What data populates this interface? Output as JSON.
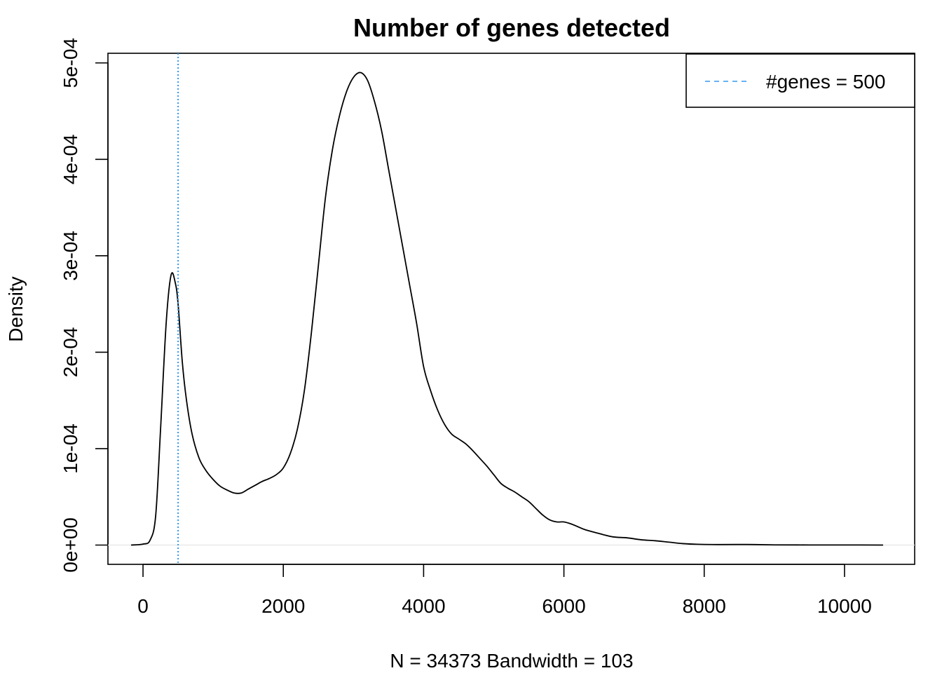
{
  "chart_data": {
    "type": "line",
    "title": "Number of genes detected",
    "xlabel": "N = 34373   Bandwidth = 103",
    "ylabel": "Density",
    "xlim": [
      -500,
      11000
    ],
    "ylim": [
      -2e-05,
      0.00051
    ],
    "x_ticks": [
      0,
      2000,
      4000,
      6000,
      8000,
      10000
    ],
    "x_tick_labels": [
      "0",
      "2000",
      "4000",
      "6000",
      "8000",
      "10000"
    ],
    "y_ticks": [
      0,
      0.0001,
      0.0002,
      0.0003,
      0.0004,
      0.0005
    ],
    "y_tick_labels": [
      "0e+00",
      "1e-04",
      "2e-04",
      "3e-04",
      "4e-04",
      "5e-04"
    ],
    "grid": false,
    "legend_position": "top-right",
    "series": [
      {
        "color": "#000000",
        "x": [
          -170,
          0,
          100,
          180,
          250,
          330,
          400,
          460,
          500,
          560,
          620,
          700,
          800,
          900,
          1000,
          1100,
          1200,
          1300,
          1400,
          1500,
          1600,
          1700,
          1800,
          1900,
          2000,
          2100,
          2200,
          2300,
          2400,
          2500,
          2600,
          2700,
          2800,
          2900,
          3000,
          3100,
          3200,
          3300,
          3400,
          3500,
          3600,
          3700,
          3800,
          3900,
          4000,
          4100,
          4200,
          4300,
          4400,
          4500,
          4600,
          4700,
          4800,
          4900,
          5000,
          5100,
          5200,
          5300,
          5400,
          5500,
          5600,
          5700,
          5800,
          5900,
          6000,
          6100,
          6200,
          6300,
          6500,
          6700,
          6900,
          7100,
          7300,
          7500,
          7700,
          7900,
          8200,
          8600,
          9000,
          9500,
          10000,
          10550
        ],
        "y": [
          0.0,
          1e-06,
          5e-06,
          3e-05,
          0.00012,
          0.00023,
          0.00028,
          0.000272,
          0.00025,
          0.00019,
          0.00015,
          0.000115,
          9e-05,
          7.7e-05,
          6.8e-05,
          6.1e-05,
          5.7e-05,
          5.4e-05,
          5.4e-05,
          5.8e-05,
          6.2e-05,
          6.6e-05,
          6.9e-05,
          7.3e-05,
          8e-05,
          9.5e-05,
          0.00012,
          0.00016,
          0.00022,
          0.00029,
          0.00036,
          0.00041,
          0.000445,
          0.00047,
          0.000485,
          0.00049,
          0.000482,
          0.00046,
          0.00043,
          0.00039,
          0.00035,
          0.00031,
          0.00027,
          0.00023,
          0.000185,
          0.00016,
          0.00014,
          0.000125,
          0.000115,
          0.00011,
          0.000105,
          9.8e-05,
          9e-05,
          8.2e-05,
          7.3e-05,
          6.4e-05,
          5.9e-05,
          5.5e-05,
          5e-05,
          4.5e-05,
          3.8e-05,
          3.1e-05,
          2.6e-05,
          2.4e-05,
          2.4e-05,
          2.2e-05,
          1.9e-05,
          1.6e-05,
          1.2e-05,
          8.5e-06,
          7.5e-06,
          5.5e-06,
          4.5e-06,
          3e-06,
          1.5e-06,
          8e-07,
          5e-07,
          6e-07,
          2e-07,
          1e-07,
          1e-07,
          0.0
        ]
      }
    ],
    "reference_line": {
      "x": 500,
      "color": "#3399ee",
      "style": "dotted",
      "legend_label": "#genes = 500"
    }
  }
}
